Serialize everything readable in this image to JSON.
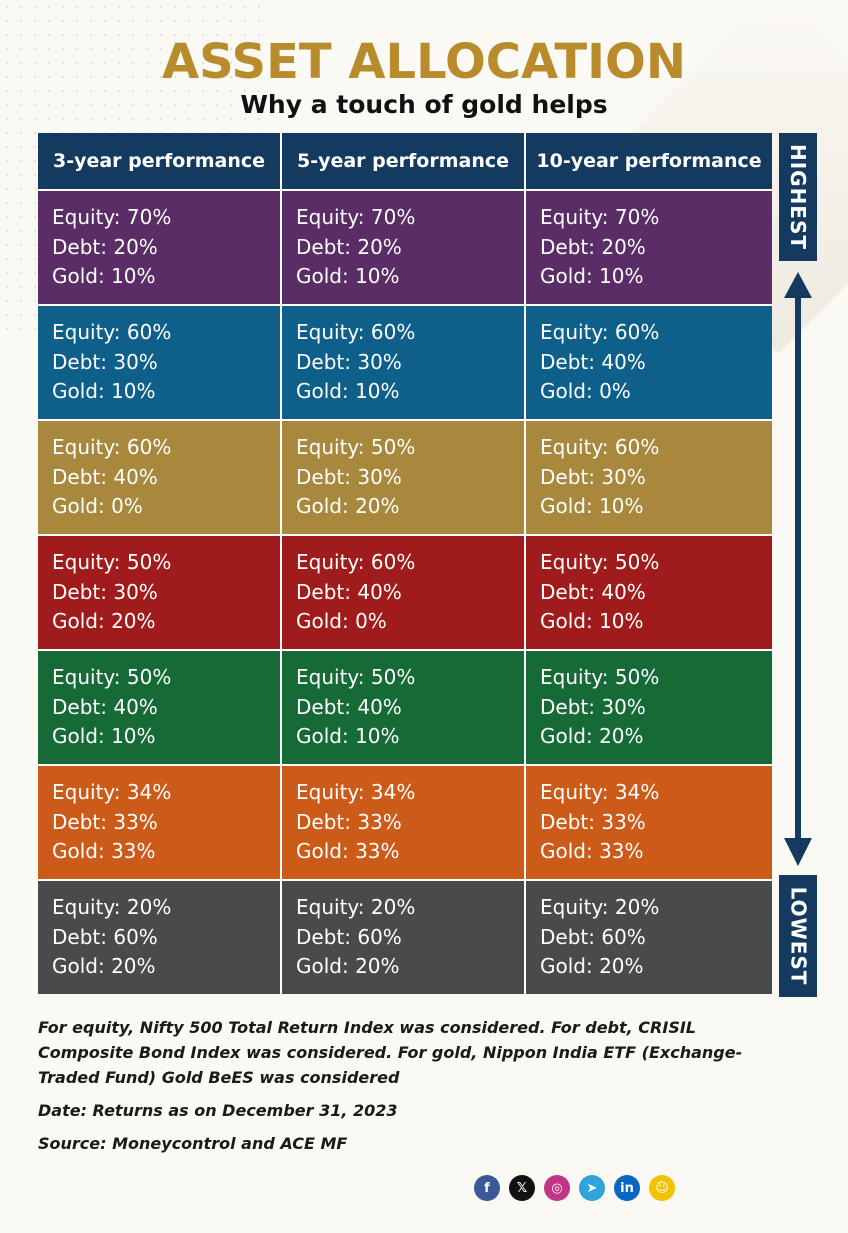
{
  "title": "ASSET ALLOCATION",
  "subtitle": "Why a touch of gold helps",
  "columns": [
    "3-year performance",
    "5-year performance",
    "10-year performance"
  ],
  "side_labels": {
    "top": "HIGHEST",
    "bottom": "LOWEST"
  },
  "rows": [
    {
      "color": "#5b2d66",
      "cells": [
        [
          "Equity: 70%",
          "Debt: 20%",
          "Gold: 10%"
        ],
        [
          "Equity: 70%",
          "Debt: 20%",
          "Gold: 10%"
        ],
        [
          "Equity: 70%",
          "Debt: 20%",
          "Gold: 10%"
        ]
      ]
    },
    {
      "color": "#0f5f8b",
      "cells": [
        [
          "Equity: 60%",
          "Debt: 30%",
          "Gold: 10%"
        ],
        [
          "Equity: 60%",
          "Debt: 30%",
          "Gold: 10%"
        ],
        [
          "Equity: 60%",
          "Debt: 40%",
          "Gold: 0%"
        ]
      ]
    },
    {
      "color": "#a8883c",
      "cells": [
        [
          "Equity: 60%",
          "Debt: 40%",
          "Gold: 0%"
        ],
        [
          "Equity: 50%",
          "Debt: 30%",
          "Gold: 20%"
        ],
        [
          "Equity: 60%",
          "Debt: 30%",
          "Gold: 10%"
        ]
      ]
    },
    {
      "color": "#a01c1c",
      "cells": [
        [
          "Equity: 50%",
          "Debt: 30%",
          "Gold: 20%"
        ],
        [
          "Equity: 60%",
          "Debt: 40%",
          "Gold: 0%"
        ],
        [
          "Equity: 50%",
          "Debt: 40%",
          "Gold: 10%"
        ]
      ]
    },
    {
      "color": "#156a36",
      "cells": [
        [
          "Equity: 50%",
          "Debt: 40%",
          "Gold: 10%"
        ],
        [
          "Equity: 50%",
          "Debt: 40%",
          "Gold: 10%"
        ],
        [
          "Equity: 50%",
          "Debt: 30%",
          "Gold: 20%"
        ]
      ]
    },
    {
      "color": "#cc5a18",
      "cells": [
        [
          "Equity: 34%",
          "Debt: 33%",
          "Gold: 33%"
        ],
        [
          "Equity: 34%",
          "Debt: 33%",
          "Gold: 33%"
        ],
        [
          "Equity: 34%",
          "Debt: 33%",
          "Gold: 33%"
        ]
      ]
    },
    {
      "color": "#4a4a4c",
      "cells": [
        [
          "Equity: 20%",
          "Debt: 60%",
          "Gold: 20%"
        ],
        [
          "Equity: 20%",
          "Debt: 60%",
          "Gold: 20%"
        ],
        [
          "Equity: 20%",
          "Debt: 60%",
          "Gold: 20%"
        ]
      ]
    }
  ],
  "notes": {
    "methodology": "For equity, Nifty 500 Total Return Index was considered. For debt, CRISIL Composite Bond Index was considered. For gold, Nippon India ETF (Exchange-Traded Fund) Gold BeES was considered",
    "date": "Date: Returns as on December 31, 2023",
    "source": "Source: Moneycontrol and ACE MF"
  },
  "social_icons": [
    {
      "name": "facebook-icon",
      "glyph": "f",
      "color": "#3b5998"
    },
    {
      "name": "x-icon",
      "glyph": "𝕏",
      "color": "#111111"
    },
    {
      "name": "instagram-icon",
      "glyph": "◎",
      "color": "#c13584"
    },
    {
      "name": "telegram-icon",
      "glyph": "➤",
      "color": "#2ea3dc"
    },
    {
      "name": "linkedin-icon",
      "glyph": "in",
      "color": "#0a66c2"
    },
    {
      "name": "snapchat-icon",
      "glyph": "☺",
      "color": "#f2c200"
    }
  ],
  "colors": {
    "header": "#143a60",
    "title": "#b88c2c"
  }
}
